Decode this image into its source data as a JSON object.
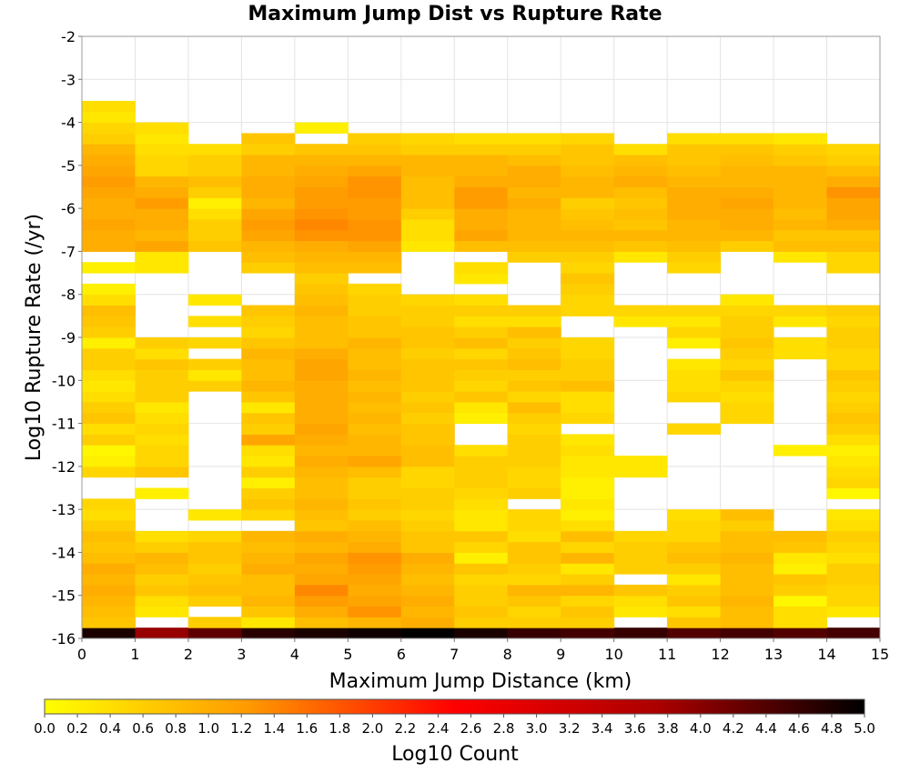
{
  "chart_data": {
    "type": "heatmap",
    "title": "Maximum Jump Dist vs Rupture Rate",
    "xlabel": "Maximum Jump Distance (km)",
    "ylabel": "Log10 Rupture Rate (/yr)",
    "colorbar_label": "Log10 Count",
    "xlim": [
      0,
      15
    ],
    "ylim": [
      -16,
      -2
    ],
    "x_ticks": [
      "0",
      "1",
      "2",
      "3",
      "4",
      "5",
      "6",
      "7",
      "8",
      "9",
      "10",
      "11",
      "12",
      "13",
      "14",
      "15"
    ],
    "y_ticks": [
      "-2",
      "-3",
      "-4",
      "-5",
      "-6",
      "-7",
      "-8",
      "-9",
      "-10",
      "-11",
      "-12",
      "-13",
      "-14",
      "-15",
      "-16"
    ],
    "color_range": [
      0,
      5
    ],
    "colorbar_ticks": [
      "0.0",
      "0.2",
      "0.4",
      "0.6",
      "0.8",
      "1.0",
      "1.2",
      "1.4",
      "1.6",
      "1.8",
      "2.0",
      "2.2",
      "2.4",
      "2.6",
      "2.8",
      "3.0",
      "3.2",
      "3.4",
      "3.6",
      "3.8",
      "4.0",
      "4.2",
      "4.4",
      "4.6",
      "4.8",
      "5.0"
    ],
    "colorscale": [
      "#ffff00",
      "#ff9900",
      "#ff0000",
      "#aa0000",
      "#000000"
    ],
    "grid": true,
    "legend": "bottom colorbar",
    "x_bin_width": 1,
    "y_bin_height": 0.25,
    "y_bin_start": -16,
    "rows": [
      [
        4.8,
        3.9,
        4.3,
        4.7,
        4.8,
        4.9,
        5.0,
        4.8,
        4.6,
        4.5,
        4.6,
        4.4,
        4.5,
        4.4,
        4.5
      ],
      [
        0.7,
        null,
        0.6,
        0.3,
        0.8,
        0.9,
        1.0,
        0.6,
        0.6,
        0.6,
        null,
        0.7,
        0.8,
        0.4,
        null
      ],
      [
        0.8,
        0.3,
        null,
        0.7,
        1.0,
        1.3,
        0.9,
        0.7,
        0.5,
        0.7,
        0.3,
        0.4,
        0.8,
        0.4,
        0.3
      ],
      [
        0.9,
        0.4,
        0.6,
        0.9,
        1.2,
        1.1,
        1.0,
        0.6,
        0.7,
        0.5,
        0.4,
        0.7,
        0.9,
        0.1,
        0.5
      ],
      [
        1.0,
        0.7,
        0.8,
        0.8,
        1.4,
        1.0,
        0.9,
        0.6,
        0.9,
        0.9,
        0.7,
        0.6,
        0.8,
        0.6,
        0.5
      ],
      [
        0.9,
        0.6,
        0.7,
        0.8,
        1.1,
        1.1,
        0.8,
        0.5,
        0.5,
        0.6,
        null,
        0.3,
        0.8,
        0.7,
        0.6
      ],
      [
        1.0,
        0.8,
        0.6,
        1.0,
        1.0,
        1.2,
        0.9,
        0.7,
        0.6,
        0.3,
        0.6,
        0.6,
        0.8,
        0.2,
        0.6
      ],
      [
        0.8,
        0.9,
        0.7,
        0.9,
        1.1,
        1.3,
        1.0,
        0.2,
        0.7,
        0.9,
        0.6,
        0.8,
        0.9,
        0.3,
        0.4
      ],
      [
        0.7,
        0.6,
        0.7,
        0.8,
        0.9,
        1.0,
        0.7,
        0.5,
        0.7,
        0.5,
        0.6,
        0.7,
        0.8,
        0.7,
        0.5
      ],
      [
        0.8,
        0.4,
        0.5,
        0.9,
        1.0,
        0.9,
        0.7,
        0.7,
        0.4,
        0.8,
        0.5,
        0.5,
        0.8,
        0.8,
        0.6
      ],
      [
        0.6,
        null,
        null,
        null,
        0.7,
        0.8,
        0.6,
        0.3,
        0.5,
        0.4,
        null,
        0.5,
        0.6,
        null,
        0.4
      ],
      [
        0.4,
        null,
        0.3,
        0.5,
        0.8,
        0.6,
        0.5,
        0.3,
        0.5,
        0.2,
        null,
        0.4,
        0.8,
        null,
        0.3
      ],
      [
        0.5,
        null,
        null,
        0.7,
        0.9,
        0.7,
        0.6,
        0.4,
        null,
        0.3,
        null,
        null,
        null,
        null,
        null
      ],
      [
        null,
        0.2,
        null,
        0.6,
        0.8,
        0.6,
        0.6,
        0.5,
        0.6,
        0.2,
        null,
        null,
        null,
        null,
        0.1
      ],
      [
        null,
        null,
        null,
        0.2,
        0.8,
        0.6,
        0.5,
        0.6,
        0.5,
        0.2,
        null,
        null,
        null,
        null,
        0.5
      ],
      [
        0.5,
        0.7,
        null,
        0.6,
        0.9,
        0.8,
        0.5,
        0.6,
        0.5,
        0.3,
        0.3,
        null,
        null,
        null,
        0.4
      ],
      [
        0.2,
        0.5,
        null,
        0.3,
        1.0,
        1.1,
        0.8,
        0.6,
        0.6,
        0.3,
        0.3,
        null,
        null,
        null,
        0.3
      ],
      [
        0.1,
        0.5,
        null,
        0.4,
        0.9,
        0.9,
        0.8,
        0.4,
        0.6,
        0.4,
        null,
        null,
        null,
        0.2,
        0.2
      ],
      [
        0.6,
        0.4,
        null,
        1.1,
        1.0,
        0.9,
        0.7,
        null,
        0.6,
        0.3,
        null,
        null,
        null,
        null,
        0.4
      ],
      [
        0.4,
        0.5,
        null,
        0.6,
        1.1,
        0.8,
        0.7,
        null,
        0.5,
        null,
        null,
        0.5,
        null,
        null,
        0.6
      ],
      [
        0.7,
        0.4,
        null,
        0.7,
        1.0,
        0.9,
        0.6,
        0.2,
        0.6,
        0.5,
        null,
        null,
        0.5,
        null,
        0.7
      ],
      [
        0.6,
        0.3,
        null,
        0.3,
        1.0,
        0.8,
        0.7,
        0.3,
        0.8,
        0.4,
        null,
        null,
        0.5,
        null,
        0.6
      ],
      [
        0.4,
        0.6,
        null,
        0.7,
        1.0,
        0.9,
        0.6,
        0.7,
        0.5,
        0.4,
        null,
        0.5,
        0.4,
        null,
        0.5
      ],
      [
        0.3,
        0.6,
        0.6,
        0.9,
        1.0,
        0.8,
        0.7,
        0.5,
        0.7,
        0.8,
        null,
        0.4,
        0.5,
        null,
        0.6
      ],
      [
        0.4,
        0.6,
        0.3,
        0.8,
        1.1,
        0.9,
        0.7,
        0.6,
        0.6,
        0.6,
        null,
        0.4,
        0.7,
        null,
        0.7
      ],
      [
        0.6,
        0.7,
        0.6,
        0.8,
        1.1,
        0.8,
        0.7,
        0.7,
        0.8,
        0.6,
        null,
        0.3,
        0.5,
        null,
        0.5
      ],
      [
        0.6,
        0.4,
        null,
        0.9,
        1.0,
        0.8,
        0.6,
        0.5,
        0.7,
        0.5,
        null,
        null,
        0.6,
        0.4,
        0.5
      ],
      [
        0.2,
        0.6,
        0.5,
        0.7,
        0.8,
        0.9,
        0.7,
        0.8,
        0.6,
        0.5,
        null,
        0.2,
        0.7,
        0.4,
        0.6
      ],
      [
        0.6,
        null,
        null,
        0.5,
        0.8,
        0.7,
        0.7,
        0.6,
        0.8,
        null,
        null,
        0.5,
        0.6,
        null,
        0.6
      ],
      [
        0.7,
        null,
        0.4,
        0.6,
        0.8,
        0.7,
        0.6,
        0.4,
        0.4,
        null,
        0.3,
        0.3,
        0.6,
        0.3,
        0.5
      ],
      [
        0.8,
        null,
        null,
        0.7,
        0.9,
        0.6,
        0.6,
        0.6,
        0.6,
        0.5,
        0.5,
        0.5,
        0.5,
        0.5,
        0.6
      ],
      [
        0.4,
        null,
        0.3,
        null,
        0.8,
        0.6,
        0.5,
        0.4,
        null,
        0.5,
        null,
        null,
        0.3,
        null,
        null
      ],
      [
        0.2,
        null,
        null,
        null,
        0.7,
        0.5,
        null,
        null,
        null,
        0.6,
        null,
        null,
        null,
        null,
        null
      ],
      [
        null,
        null,
        null,
        null,
        0.6,
        null,
        null,
        0.3,
        null,
        0.7,
        null,
        null,
        null,
        null,
        null
      ],
      [
        0.2,
        0.3,
        null,
        0.6,
        0.8,
        0.8,
        null,
        0.4,
        null,
        0.5,
        null,
        0.5,
        null,
        null,
        0.5
      ],
      [
        null,
        0.3,
        null,
        0.8,
        0.9,
        0.9,
        null,
        null,
        0.6,
        0.6,
        0.3,
        0.6,
        null,
        0.3,
        0.5
      ],
      [
        1.0,
        1.1,
        0.7,
        0.9,
        1.0,
        1.1,
        0.3,
        0.8,
        0.8,
        0.8,
        0.7,
        0.8,
        0.6,
        0.8,
        0.8
      ],
      [
        1.0,
        0.9,
        0.6,
        1.1,
        1.3,
        1.3,
        0.4,
        1.1,
        0.9,
        0.9,
        0.9,
        0.9,
        0.9,
        0.7,
        0.7
      ],
      [
        1.1,
        1.0,
        0.6,
        1.2,
        1.4,
        1.3,
        0.4,
        1.0,
        0.9,
        0.8,
        0.7,
        0.9,
        1.0,
        0.9,
        1.0
      ],
      [
        1.0,
        1.0,
        0.4,
        1.1,
        1.3,
        1.2,
        0.6,
        1.0,
        0.9,
        0.7,
        0.8,
        1.0,
        1.0,
        0.8,
        1.1
      ],
      [
        1.0,
        1.2,
        0.2,
        0.9,
        1.2,
        1.2,
        0.8,
        1.2,
        1.0,
        0.6,
        0.7,
        1.0,
        1.1,
        0.9,
        1.1
      ],
      [
        1.1,
        1.0,
        0.6,
        1.0,
        1.2,
        1.3,
        0.8,
        1.2,
        0.9,
        0.9,
        0.8,
        1.0,
        1.0,
        0.9,
        1.3
      ],
      [
        1.2,
        0.9,
        0.8,
        1.0,
        1.1,
        1.3,
        0.8,
        1.0,
        1.0,
        0.9,
        1.0,
        0.9,
        0.9,
        0.9,
        1.0
      ],
      [
        1.1,
        0.5,
        0.6,
        0.9,
        1.0,
        1.1,
        0.9,
        0.9,
        1.0,
        0.8,
        0.9,
        0.8,
        0.9,
        0.9,
        0.8
      ],
      [
        1.0,
        0.5,
        0.6,
        0.9,
        0.9,
        0.9,
        0.9,
        0.9,
        0.8,
        0.7,
        0.8,
        0.7,
        0.8,
        0.7,
        0.6
      ],
      [
        0.9,
        0.4,
        0.4,
        0.6,
        0.7,
        0.7,
        0.6,
        0.6,
        0.6,
        0.7,
        0.4,
        0.7,
        0.7,
        0.6,
        0.5
      ],
      [
        0.6,
        0.3,
        null,
        0.7,
        null,
        0.6,
        0.5,
        0.4,
        0.4,
        0.5,
        null,
        0.4,
        0.4,
        0.3,
        null
      ],
      [
        0.5,
        0.4,
        null,
        null,
        0.2,
        null,
        null,
        null,
        null,
        null,
        null,
        null,
        null,
        null,
        null
      ],
      [
        0.3,
        null,
        null,
        null,
        null,
        null,
        null,
        null,
        null,
        null,
        null,
        null,
        null,
        null,
        null
      ],
      [
        0.4,
        null,
        null,
        null,
        null,
        null,
        null,
        null,
        null,
        null,
        null,
        null,
        null,
        null,
        null
      ]
    ]
  }
}
